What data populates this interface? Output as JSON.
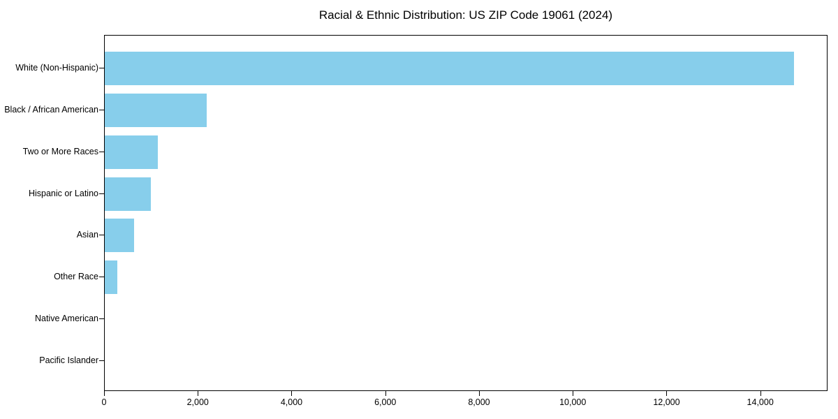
{
  "title": "Racial & Ethnic Distribution: US ZIP Code 19061 (2024)",
  "chart_data": {
    "type": "bar",
    "orientation": "horizontal",
    "title": "Racial & Ethnic Distribution: US ZIP Code 19061 (2024)",
    "xlabel": "",
    "ylabel": "",
    "categories": [
      "White (Non-Hispanic)",
      "Black / African American",
      "Two or More Races",
      "Hispanic or Latino",
      "Asian",
      "Other Race",
      "Native American",
      "Pacific Islander"
    ],
    "values": [
      14700,
      2175,
      1130,
      985,
      620,
      265,
      0,
      0
    ],
    "xlim": [
      0,
      15435
    ],
    "x_ticks": [
      0,
      2000,
      4000,
      6000,
      8000,
      10000,
      12000,
      14000
    ],
    "x_tick_labels": [
      "0",
      "2,000",
      "4,000",
      "6,000",
      "8,000",
      "10,000",
      "12,000",
      "14,000"
    ],
    "bar_color": "#87CEEB",
    "background_color": "#ffffff",
    "spine_color": "#000000",
    "text_color": "#000000",
    "grid": false,
    "legend": null
  }
}
